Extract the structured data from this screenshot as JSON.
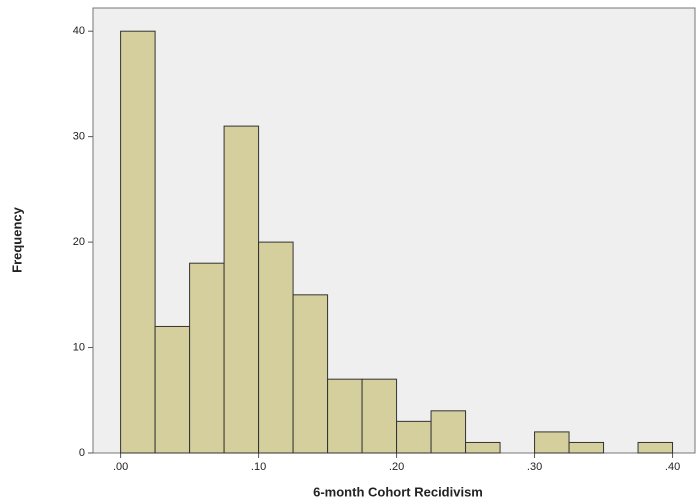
{
  "chart_data": {
    "type": "histogram",
    "x_label": "6-month Cohort Recidivism",
    "y_label": "Frequency",
    "bins": [
      0,
      0.025,
      0.05,
      0.075,
      0.1,
      0.125,
      0.15,
      0.175,
      0.2,
      0.225,
      0.25,
      0.275,
      0.3,
      0.325,
      0.35,
      0.375,
      0.4
    ],
    "counts": [
      40,
      12,
      18,
      31,
      20,
      15,
      7,
      7,
      3,
      4,
      1,
      0,
      2,
      1,
      0,
      1
    ],
    "color": "#d4cf9c",
    "xlim": [
      -0.02,
      0.417
    ],
    "ylim": [
      0,
      42.2
    ],
    "xticks": [
      {
        "value": 0,
        "label": ".00"
      },
      {
        "value": 0.1,
        "label": ".10"
      },
      {
        "value": 0.2,
        "label": ".20"
      },
      {
        "value": 0.3,
        "label": ".30"
      },
      {
        "value": 0.4,
        "label": ".40"
      }
    ],
    "yticks": [
      0,
      10,
      20,
      30,
      40
    ]
  }
}
